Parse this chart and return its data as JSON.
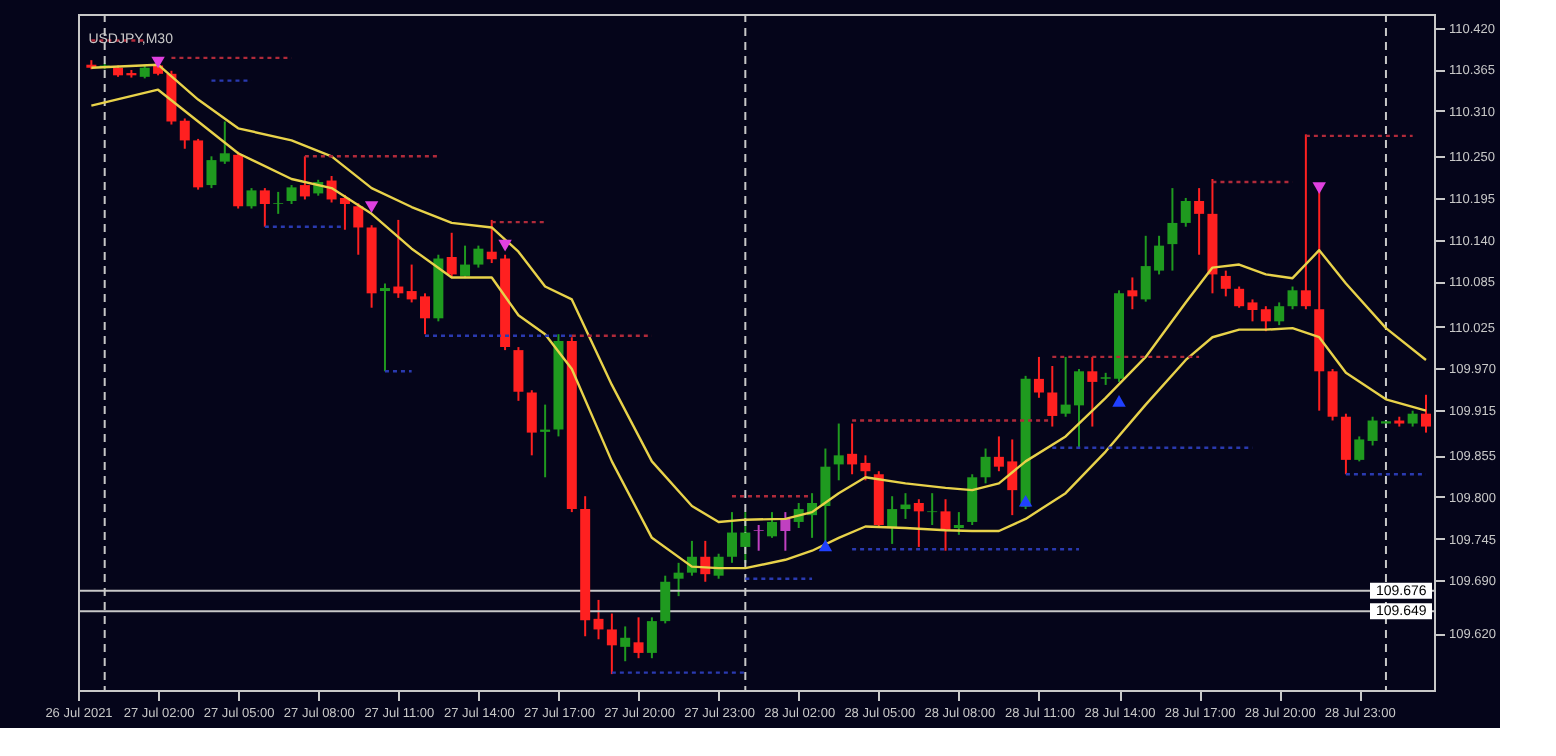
{
  "chart_data": {
    "type": "candlestick",
    "title": "USDJPY,M30",
    "colors": [
      "#ff2020",
      "#1f9a1f",
      "#ff2020",
      "#ff2020",
      "#1f9a1f",
      "#ff2020",
      "#ff2020",
      "#ff2020",
      "#ff2020",
      "#1f9a1f",
      "#1f9a1f",
      "#ff2020",
      "#1f9a1f",
      "#ff2020",
      "#1f9a1f",
      "#1f9a1f",
      "#ff2020",
      "#1f9a1f",
      "#ff2020",
      "#ff2020",
      "#ff2020",
      "#ff2020",
      "#1f9a1f",
      "#ff2020",
      "#ff2020",
      "#ff2020",
      "#1f9a1f",
      "#ff2020",
      "#1f9a1f",
      "#1f9a1f",
      "#ff2020",
      "#ff2020",
      "#ff2020",
      "#ff2020",
      "#1f9a1f",
      "#1f9a1f",
      "#ff2020",
      "#ff2020",
      "#ff2020",
      "#ff2020",
      "#1f9a1f",
      "#ff2020",
      "#1f9a1f",
      "#1f9a1f",
      "#1f9a1f",
      "#1f9a1f",
      "#ff2020",
      "#1f9a1f",
      "#1f9a1f",
      "#1f9a1f",
      "#c040c0",
      "#1f9a1f",
      "#c040c0",
      "#1f9a1f",
      "#1f9a1f",
      "#1f9a1f",
      "#1f9a1f",
      "#ff2020",
      "#ff2020",
      "#ff2020",
      "#1f9a1f",
      "#1f9a1f",
      "#ff2020",
      "#1f9a1f",
      "#ff2020",
      "#1f9a1f",
      "#1f9a1f",
      "#1f9a1f",
      "#ff2020",
      "#ff2020",
      "#1f9a1f",
      "#ff2020",
      "#ff2020",
      "#1f9a1f",
      "#1f9a1f",
      "#ff2020",
      "#1f9a1f",
      "#1f9a1f",
      "#ff2020",
      "#1f9a1f",
      "#1f9a1f",
      "#1f9a1f",
      "#1f9a1f",
      "#ff2020",
      "#ff2020",
      "#ff2020",
      "#ff2020",
      "#ff2020",
      "#ff2020",
      "#1f9a1f",
      "#1f9a1f",
      "#ff2020",
      "#ff2020",
      "#ff2020",
      "#ff2020",
      "#1f9a1f",
      "#1f9a1f",
      "#1f9a1f",
      "#ff2020",
      "#1f9a1f",
      "#ff2020"
    ],
    "x": [
      "2021-07-26T23:30",
      "2021-07-27T00:00",
      "2021-07-27T00:30",
      "2021-07-27T01:00",
      "2021-07-27T01:30",
      "2021-07-27T02:00",
      "2021-07-27T02:30",
      "2021-07-27T03:00",
      "2021-07-27T03:30",
      "2021-07-27T04:00",
      "2021-07-27T04:30",
      "2021-07-27T05:00",
      "2021-07-27T05:30",
      "2021-07-27T06:00",
      "2021-07-27T06:30",
      "2021-07-27T07:00",
      "2021-07-27T07:30",
      "2021-07-27T08:00",
      "2021-07-27T08:30",
      "2021-07-27T09:00",
      "2021-07-27T09:30",
      "2021-07-27T10:00",
      "2021-07-27T10:30",
      "2021-07-27T11:00",
      "2021-07-27T11:30",
      "2021-07-27T12:00",
      "2021-07-27T12:30",
      "2021-07-27T13:00",
      "2021-07-27T13:30",
      "2021-07-27T14:00",
      "2021-07-27T14:30",
      "2021-07-27T15:00",
      "2021-07-27T15:30",
      "2021-07-27T16:00",
      "2021-07-27T16:30",
      "2021-07-27T17:00",
      "2021-07-27T17:30",
      "2021-07-27T18:00",
      "2021-07-27T18:30",
      "2021-07-27T19:00",
      "2021-07-27T19:30",
      "2021-07-27T20:00",
      "2021-07-27T20:30",
      "2021-07-27T21:00",
      "2021-07-27T21:30",
      "2021-07-27T22:00",
      "2021-07-27T22:30",
      "2021-07-27T23:00",
      "2021-07-27T23:30",
      "2021-07-28T00:00",
      "2021-07-28T00:30",
      "2021-07-28T01:00",
      "2021-07-28T01:30",
      "2021-07-28T02:00",
      "2021-07-28T02:30",
      "2021-07-28T03:00",
      "2021-07-28T03:30",
      "2021-07-28T04:00",
      "2021-07-28T04:30",
      "2021-07-28T05:00",
      "2021-07-28T05:30",
      "2021-07-28T06:00",
      "2021-07-28T06:30",
      "2021-07-28T07:00",
      "2021-07-28T07:30",
      "2021-07-28T08:00",
      "2021-07-28T08:30",
      "2021-07-28T09:00",
      "2021-07-28T09:30",
      "2021-07-28T10:00",
      "2021-07-28T10:30",
      "2021-07-28T11:00",
      "2021-07-28T11:30",
      "2021-07-28T12:00",
      "2021-07-28T12:30",
      "2021-07-28T13:00",
      "2021-07-28T13:30",
      "2021-07-28T14:00",
      "2021-07-28T14:30",
      "2021-07-28T15:00",
      "2021-07-28T15:30",
      "2021-07-28T16:00",
      "2021-07-28T16:30",
      "2021-07-28T17:00",
      "2021-07-28T17:30",
      "2021-07-28T18:00",
      "2021-07-28T18:30",
      "2021-07-28T19:00",
      "2021-07-28T19:30",
      "2021-07-28T20:00",
      "2021-07-28T20:30",
      "2021-07-28T21:00",
      "2021-07-28T21:30",
      "2021-07-28T22:00",
      "2021-07-28T22:30",
      "2021-07-28T23:00",
      "2021-07-28T23:30",
      "2021-07-29T00:00",
      "2021-07-29T00:30",
      "2021-07-29T01:00",
      "2021-07-29T01:30"
    ],
    "ohlc": [
      [
        110.371,
        110.377,
        110.365,
        110.367
      ],
      [
        110.367,
        110.373,
        110.365,
        110.37
      ],
      [
        110.367,
        110.37,
        110.355,
        110.357
      ],
      [
        110.36,
        110.364,
        110.354,
        110.357
      ],
      [
        110.355,
        110.37,
        110.353,
        110.367
      ],
      [
        110.37,
        110.374,
        110.357,
        110.359
      ],
      [
        110.359,
        110.363,
        110.292,
        110.296
      ],
      [
        110.297,
        110.3,
        110.26,
        110.271
      ],
      [
        110.271,
        110.273,
        110.206,
        110.209
      ],
      [
        110.212,
        110.25,
        110.208,
        110.245
      ],
      [
        110.243,
        110.296,
        110.24,
        110.254
      ],
      [
        110.252,
        110.256,
        110.181,
        110.184
      ],
      [
        110.184,
        110.208,
        110.181,
        110.205
      ],
      [
        110.205,
        110.208,
        110.157,
        110.187
      ],
      [
        110.187,
        110.203,
        110.174,
        110.188
      ],
      [
        110.191,
        110.212,
        110.187,
        110.209
      ],
      [
        110.212,
        110.25,
        110.193,
        110.197
      ],
      [
        110.201,
        110.219,
        110.198,
        110.216
      ],
      [
        110.218,
        110.224,
        110.189,
        110.193
      ],
      [
        110.195,
        110.199,
        110.153,
        110.187
      ],
      [
        110.184,
        110.188,
        110.12,
        110.156
      ],
      [
        110.156,
        110.159,
        110.05,
        110.069
      ],
      [
        110.072,
        110.082,
        109.966,
        110.076
      ],
      [
        110.078,
        110.166,
        110.063,
        110.069
      ],
      [
        110.072,
        110.107,
        110.057,
        110.061
      ],
      [
        110.065,
        110.069,
        110.015,
        110.036
      ],
      [
        110.036,
        110.12,
        110.032,
        110.115
      ],
      [
        110.117,
        110.149,
        110.09,
        110.094
      ],
      [
        110.092,
        110.132,
        110.089,
        110.107
      ],
      [
        110.107,
        110.132,
        110.103,
        110.128
      ],
      [
        110.124,
        110.166,
        110.109,
        110.114
      ],
      [
        110.115,
        110.12,
        109.994,
        109.998
      ],
      [
        109.994,
        109.998,
        109.927,
        109.939
      ],
      [
        109.938,
        109.941,
        109.855,
        109.885
      ],
      [
        109.886,
        109.922,
        109.826,
        109.889
      ],
      [
        109.889,
        110.015,
        109.88,
        110.006
      ],
      [
        110.006,
        110.011,
        109.78,
        109.784
      ],
      [
        109.784,
        109.801,
        109.616,
        109.637
      ],
      [
        109.639,
        109.664,
        109.612,
        109.625
      ],
      [
        109.625,
        109.646,
        109.566,
        109.604
      ],
      [
        109.602,
        109.629,
        109.583,
        109.614
      ],
      [
        109.608,
        109.641,
        109.587,
        109.594
      ],
      [
        109.594,
        109.641,
        109.587,
        109.636
      ],
      [
        109.636,
        109.696,
        109.633,
        109.688
      ],
      [
        109.692,
        109.713,
        109.669,
        109.7
      ],
      [
        109.7,
        109.742,
        109.696,
        109.721
      ],
      [
        109.721,
        109.742,
        109.688,
        109.698
      ],
      [
        109.696,
        109.725,
        109.692,
        109.721
      ],
      [
        109.721,
        109.78,
        109.713,
        109.753
      ],
      [
        109.734,
        109.78,
        109.713,
        109.753
      ],
      [
        109.755,
        109.763,
        109.729,
        109.756
      ],
      [
        109.748,
        109.78,
        109.746,
        109.767
      ],
      [
        109.755,
        109.78,
        109.729,
        109.771
      ],
      [
        109.767,
        109.792,
        109.759,
        109.784
      ],
      [
        109.776,
        109.805,
        109.746,
        109.792
      ],
      [
        109.788,
        109.864,
        109.738,
        109.84
      ],
      [
        109.843,
        109.897,
        109.822,
        109.855
      ],
      [
        109.857,
        109.897,
        109.83,
        109.843
      ],
      [
        109.845,
        109.855,
        109.822,
        109.834
      ],
      [
        109.83,
        109.834,
        109.759,
        109.763
      ],
      [
        109.759,
        109.801,
        109.738,
        109.784
      ],
      [
        109.784,
        109.805,
        109.771,
        109.79
      ],
      [
        109.792,
        109.797,
        109.734,
        109.781
      ],
      [
        109.78,
        109.805,
        109.763,
        109.781
      ],
      [
        109.781,
        109.797,
        109.729,
        109.756
      ],
      [
        109.759,
        109.78,
        109.75,
        109.763
      ],
      [
        109.767,
        109.83,
        109.763,
        109.826
      ],
      [
        109.826,
        109.864,
        109.818,
        109.853
      ],
      [
        109.853,
        109.88,
        109.834,
        109.84
      ],
      [
        109.847,
        109.876,
        109.776,
        109.809
      ],
      [
        109.787,
        109.96,
        109.784,
        109.956
      ],
      [
        109.956,
        109.985,
        109.931,
        109.938
      ],
      [
        109.938,
        109.973,
        109.893,
        109.907
      ],
      [
        109.91,
        109.985,
        109.906,
        109.922
      ],
      [
        109.921,
        109.969,
        109.864,
        109.966
      ],
      [
        109.966,
        109.985,
        109.893,
        109.952
      ],
      [
        109.956,
        109.964,
        109.948,
        109.958
      ],
      [
        109.956,
        110.073,
        109.952,
        110.069
      ],
      [
        110.073,
        110.09,
        110.048,
        110.065
      ],
      [
        110.061,
        110.145,
        110.058,
        110.105
      ],
      [
        110.099,
        110.145,
        110.094,
        110.132
      ],
      [
        110.134,
        110.208,
        110.099,
        110.162
      ],
      [
        110.162,
        110.195,
        110.157,
        110.191
      ],
      [
        110.191,
        110.208,
        110.12,
        110.174
      ],
      [
        110.174,
        110.22,
        110.069,
        110.094
      ],
      [
        110.092,
        110.099,
        110.065,
        110.075
      ],
      [
        110.075,
        110.078,
        110.05,
        110.052
      ],
      [
        110.057,
        110.061,
        110.032,
        110.047
      ],
      [
        110.048,
        110.052,
        110.019,
        110.032
      ],
      [
        110.032,
        110.057,
        110.027,
        110.052
      ],
      [
        110.052,
        110.078,
        110.048,
        110.073
      ],
      [
        110.073,
        110.279,
        110.048,
        110.052
      ],
      [
        110.048,
        110.208,
        109.914,
        109.966
      ],
      [
        109.966,
        109.969,
        109.901,
        109.906
      ],
      [
        109.906,
        109.91,
        109.83,
        109.849
      ],
      [
        109.849,
        109.88,
        109.847,
        109.876
      ],
      [
        109.874,
        109.906,
        109.868,
        109.901
      ],
      [
        109.897,
        109.901,
        109.893,
        109.9
      ],
      [
        109.901,
        109.906,
        109.893,
        109.897
      ],
      [
        109.897,
        109.914,
        109.893,
        109.91
      ],
      [
        109.91,
        109.935,
        109.885,
        109.893
      ]
    ],
    "series": [
      {
        "type": "line",
        "color": "#e8d24a",
        "line_style": "solid",
        "x": [
          "2021-07-26T23:30",
          "2021-07-27T02:00",
          "2021-07-27T03:30",
          "2021-07-27T05:00",
          "2021-07-27T07:00",
          "2021-07-27T08:30",
          "2021-07-27T10:00",
          "2021-07-27T11:30",
          "2021-07-27T13:00",
          "2021-07-27T14:30",
          "2021-07-27T15:30",
          "2021-07-27T16:30",
          "2021-07-27T17:30",
          "2021-07-27T19:00",
          "2021-07-27T20:30",
          "2021-07-27T22:00",
          "2021-07-27T23:00",
          "2021-07-28T00:00",
          "2021-07-28T01:30",
          "2021-07-28T02:30",
          "2021-07-28T03:30",
          "2021-07-28T04:30",
          "2021-07-28T06:00",
          "2021-07-28T07:30",
          "2021-07-28T08:30",
          "2021-07-28T09:30",
          "2021-07-28T10:30",
          "2021-07-28T12:00",
          "2021-07-28T13:30",
          "2021-07-28T15:00",
          "2021-07-28T16:30",
          "2021-07-28T17:30",
          "2021-07-28T18:30",
          "2021-07-28T19:30",
          "2021-07-28T20:30",
          "2021-07-28T21:30",
          "2021-07-28T22:30",
          "2021-07-29T00:00",
          "2021-07-29T01:30"
        ],
        "values": [
          110.367,
          110.371,
          110.325,
          110.287,
          110.271,
          110.25,
          110.208,
          110.183,
          110.162,
          110.156,
          110.124,
          110.078,
          110.061,
          109.948,
          109.847,
          109.788,
          109.767,
          109.77,
          109.771,
          109.78,
          109.805,
          109.826,
          109.818,
          109.812,
          109.809,
          109.818,
          109.847,
          109.88,
          109.931,
          109.985,
          110.057,
          110.103,
          110.107,
          110.094,
          110.089,
          110.126,
          110.082,
          110.023,
          109.981
        ]
      },
      {
        "type": "line",
        "color": "#e8d24a",
        "line_style": "solid",
        "x": [
          "2021-07-26T23:30",
          "2021-07-27T02:00",
          "2021-07-27T03:30",
          "2021-07-27T05:00",
          "2021-07-27T07:00",
          "2021-07-27T08:30",
          "2021-07-27T10:00",
          "2021-07-27T11:30",
          "2021-07-27T13:00",
          "2021-07-27T14:30",
          "2021-07-27T15:30",
          "2021-07-27T16:30",
          "2021-07-27T17:30",
          "2021-07-27T19:00",
          "2021-07-27T20:30",
          "2021-07-27T22:00",
          "2021-07-27T23:00",
          "2021-07-28T00:00",
          "2021-07-28T01:30",
          "2021-07-28T02:30",
          "2021-07-28T03:30",
          "2021-07-28T04:30",
          "2021-07-28T06:00",
          "2021-07-28T07:30",
          "2021-07-28T08:30",
          "2021-07-28T09:30",
          "2021-07-28T10:30",
          "2021-07-28T12:00",
          "2021-07-28T13:30",
          "2021-07-28T15:00",
          "2021-07-28T16:30",
          "2021-07-28T17:30",
          "2021-07-28T18:30",
          "2021-07-28T19:30",
          "2021-07-28T20:30",
          "2021-07-28T21:30",
          "2021-07-28T22:30",
          "2021-07-29T00:00",
          "2021-07-29T01:30"
        ],
        "values": [
          110.317,
          110.338,
          110.296,
          110.254,
          110.22,
          110.208,
          110.174,
          110.128,
          110.09,
          110.09,
          110.04,
          110.015,
          109.969,
          109.847,
          109.746,
          109.708,
          109.706,
          109.706,
          109.717,
          109.729,
          109.746,
          109.761,
          109.759,
          109.756,
          109.755,
          109.755,
          109.771,
          109.805,
          109.86,
          109.922,
          109.981,
          110.011,
          110.021,
          110.021,
          110.023,
          110.011,
          109.964,
          109.929,
          109.914
        ]
      },
      {
        "type": "line",
        "color": "#b02a3a",
        "line_style": "dotted",
        "x": [
          "2021-07-26T23:30",
          "2021-07-27T01:30",
          null,
          "2021-07-27T02:30",
          "2021-07-27T07:00",
          null,
          "2021-07-27T07:30",
          "2021-07-27T12:30",
          null,
          "2021-07-27T14:30",
          "2021-07-27T16:30",
          null,
          "2021-07-27T17:30",
          "2021-07-27T20:30",
          null,
          "2021-07-27T23:30",
          "2021-07-28T02:30",
          null,
          "2021-07-28T04:00",
          "2021-07-28T11:30",
          null,
          "2021-07-28T11:30",
          "2021-07-28T17:00",
          null,
          "2021-07-28T17:30",
          "2021-07-28T20:30",
          null,
          "2021-07-28T21:00",
          "2021-07-29T01:00"
        ],
        "values": [
          110.403,
          110.403,
          null,
          110.38,
          110.38,
          null,
          110.25,
          110.25,
          null,
          110.163,
          110.163,
          null,
          110.013,
          110.013,
          null,
          109.801,
          109.801,
          null,
          109.901,
          109.901,
          null,
          109.985,
          109.985,
          null,
          110.216,
          110.216,
          null,
          110.277,
          110.277
        ]
      },
      {
        "type": "line",
        "color": "#2a3ab0",
        "line_style": "dotted",
        "x": [
          "2021-07-27T04:00",
          "2021-07-27T05:30",
          null,
          "2021-07-27T06:00",
          "2021-07-27T09:00",
          null,
          "2021-07-27T10:30",
          "2021-07-27T11:30",
          null,
          "2021-07-27T12:00",
          "2021-07-27T17:30",
          null,
          "2021-07-27T19:00",
          "2021-07-28T00:00",
          null,
          "2021-07-28T00:00",
          "2021-07-28T02:30",
          null,
          "2021-07-28T04:00",
          "2021-07-28T12:30",
          null,
          "2021-07-28T11:30",
          "2021-07-28T19:00",
          null,
          "2021-07-28T22:30",
          "2021-07-29T01:30"
        ],
        "values": [
          110.35,
          110.35,
          null,
          110.157,
          110.157,
          null,
          109.966,
          109.966,
          null,
          110.013,
          110.013,
          null,
          109.568,
          109.568,
          null,
          109.692,
          109.692,
          null,
          109.731,
          109.731,
          null,
          109.865,
          109.865,
          null,
          109.83,
          109.83
        ]
      },
      {
        "type": "scatter",
        "color": "#e040e0",
        "marker": "triangle-down",
        "x": [
          "2021-07-27T02:00",
          "2021-07-27T10:00",
          "2021-07-27T15:00",
          "2021-07-28T21:30"
        ],
        "values": [
          110.374,
          110.183,
          110.132,
          110.208
        ]
      },
      {
        "type": "scatter",
        "color": "#2040ff",
        "marker": "triangle",
        "x": [
          "2021-07-28T03:00",
          "2021-07-28T10:30",
          "2021-07-28T14:00"
        ],
        "values": [
          109.736,
          109.795,
          109.927
        ]
      }
    ],
    "ref_lines": [
      {
        "axis": "x",
        "value": "2021-07-27T00:00",
        "color": "#c8c8c8",
        "line_style": "dashed"
      },
      {
        "axis": "x",
        "value": "2021-07-28T00:00",
        "color": "#c8c8c8",
        "line_style": "dashed"
      },
      {
        "axis": "x",
        "value": "2021-07-29T00:00",
        "color": "#c8c8c8",
        "line_style": "dashed"
      },
      {
        "axis": "y",
        "value": 109.676,
        "label": "109.676",
        "color": "#c8c8c8",
        "line_style": "solid"
      },
      {
        "axis": "y",
        "value": 109.649,
        "label": "109.649",
        "color": "#c8c8c8",
        "line_style": "solid"
      }
    ],
    "xlim": [
      "2021-07-26T23:00",
      "2021-07-29T01:48"
    ],
    "xticks": [
      {
        "value": "2021-07-26T23:00",
        "label": "26 Jul 2021"
      },
      {
        "value": "2021-07-27T02:00",
        "label": "27 Jul 02:00"
      },
      {
        "value": "2021-07-27T05:00",
        "label": "27 Jul 05:00"
      },
      {
        "value": "2021-07-27T08:00",
        "label": "27 Jul 08:00"
      },
      {
        "value": "2021-07-27T11:00",
        "label": "27 Jul 11:00"
      },
      {
        "value": "2021-07-27T14:00",
        "label": "27 Jul 14:00"
      },
      {
        "value": "2021-07-27T17:00",
        "label": "27 Jul 17:00"
      },
      {
        "value": "2021-07-27T20:00",
        "label": "27 Jul 20:00"
      },
      {
        "value": "2021-07-27T23:00",
        "label": "27 Jul 23:00"
      },
      {
        "value": "2021-07-28T02:00",
        "label": "28 Jul 02:00"
      },
      {
        "value": "2021-07-28T05:00",
        "label": "28 Jul 05:00"
      },
      {
        "value": "2021-07-28T08:00",
        "label": "28 Jul 08:00"
      },
      {
        "value": "2021-07-28T11:00",
        "label": "28 Jul 11:00"
      },
      {
        "value": "2021-07-28T14:00",
        "label": "28 Jul 14:00"
      },
      {
        "value": "2021-07-28T17:00",
        "label": "28 Jul 17:00"
      },
      {
        "value": "2021-07-28T20:00",
        "label": "28 Jul 20:00"
      },
      {
        "value": "2021-07-28T23:00",
        "label": "28 Jul 23:00"
      }
    ],
    "ylim": [
      109.545,
      110.438
    ],
    "yticks": [
      {
        "value": 110.42,
        "label": "110.420"
      },
      110.365,
      {
        "value": 110.31,
        "label": "110.310"
      },
      {
        "value": 110.25,
        "label": "110.250"
      },
      110.195,
      {
        "value": 110.14,
        "label": "110.140"
      },
      110.085,
      110.025,
      {
        "value": 109.97,
        "label": "109.970"
      },
      109.915,
      109.855,
      {
        "value": 109.8,
        "label": "109.800"
      },
      109.745,
      {
        "value": 109.69,
        "label": "109.690"
      },
      {
        "value": 109.62,
        "label": "109.620"
      }
    ],
    "grid": false
  }
}
